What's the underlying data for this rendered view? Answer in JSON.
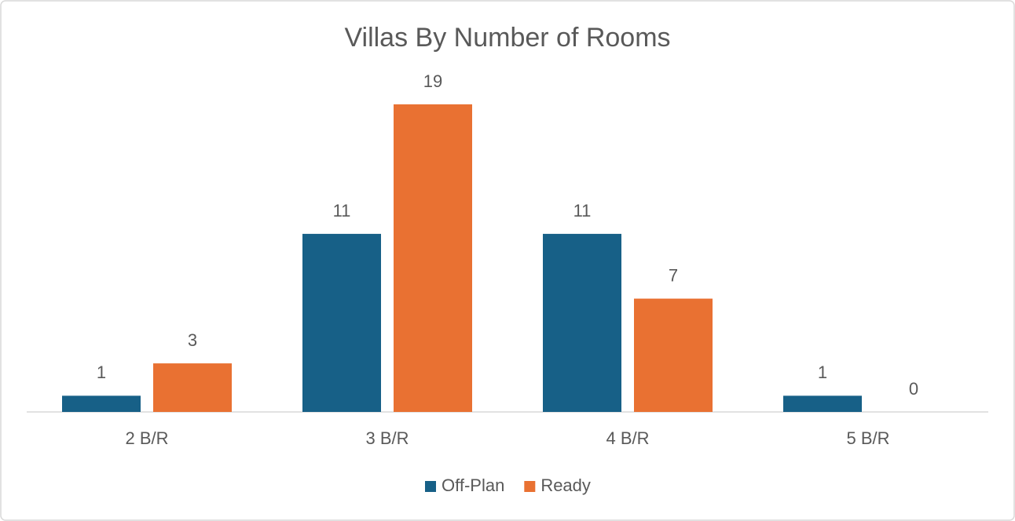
{
  "chart_data": {
    "type": "bar",
    "title": "Villas By Number of Rooms",
    "categories": [
      "2 B/R",
      "3 B/R",
      "4 B/R",
      "5 B/R"
    ],
    "series": [
      {
        "name": "Off-Plan",
        "color": "#176087",
        "values": [
          1,
          11,
          11,
          1
        ]
      },
      {
        "name": "Ready",
        "color": "#e97132",
        "values": [
          3,
          19,
          7,
          0
        ]
      }
    ],
    "legend": "bottom"
  }
}
